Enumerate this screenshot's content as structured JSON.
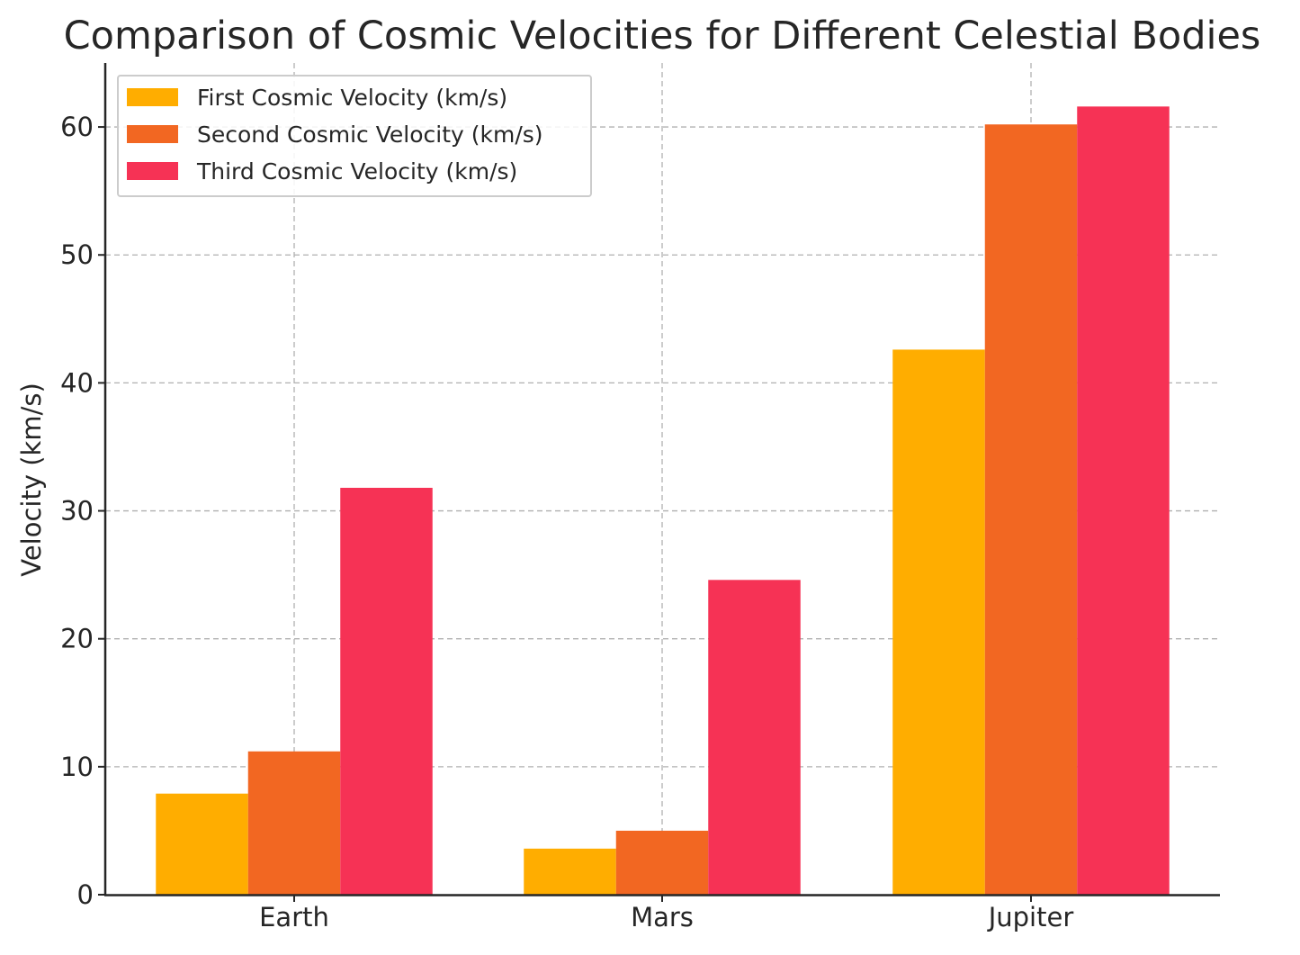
{
  "chart_data": {
    "type": "bar",
    "title": "Comparison of Cosmic Velocities for Different Celestial Bodies",
    "xlabel": "",
    "ylabel": "Velocity (km/s)",
    "categories": [
      "Earth",
      "Mars",
      "Jupiter"
    ],
    "series": [
      {
        "name": "First Cosmic Velocity (km/s)",
        "values": [
          7.9,
          3.6,
          42.6
        ],
        "color": "#FFAD00"
      },
      {
        "name": "Second Cosmic Velocity (km/s)",
        "values": [
          11.2,
          5.0,
          60.2
        ],
        "color": "#F26722"
      },
      {
        "name": "Third Cosmic Velocity (km/s)",
        "values": [
          31.8,
          24.6,
          61.6
        ],
        "color": "#F63255"
      }
    ],
    "ylim": [
      0,
      65
    ],
    "yticks": [
      0,
      10,
      20,
      30,
      40,
      50,
      60
    ],
    "grid": true,
    "legend_position": "top-left"
  }
}
